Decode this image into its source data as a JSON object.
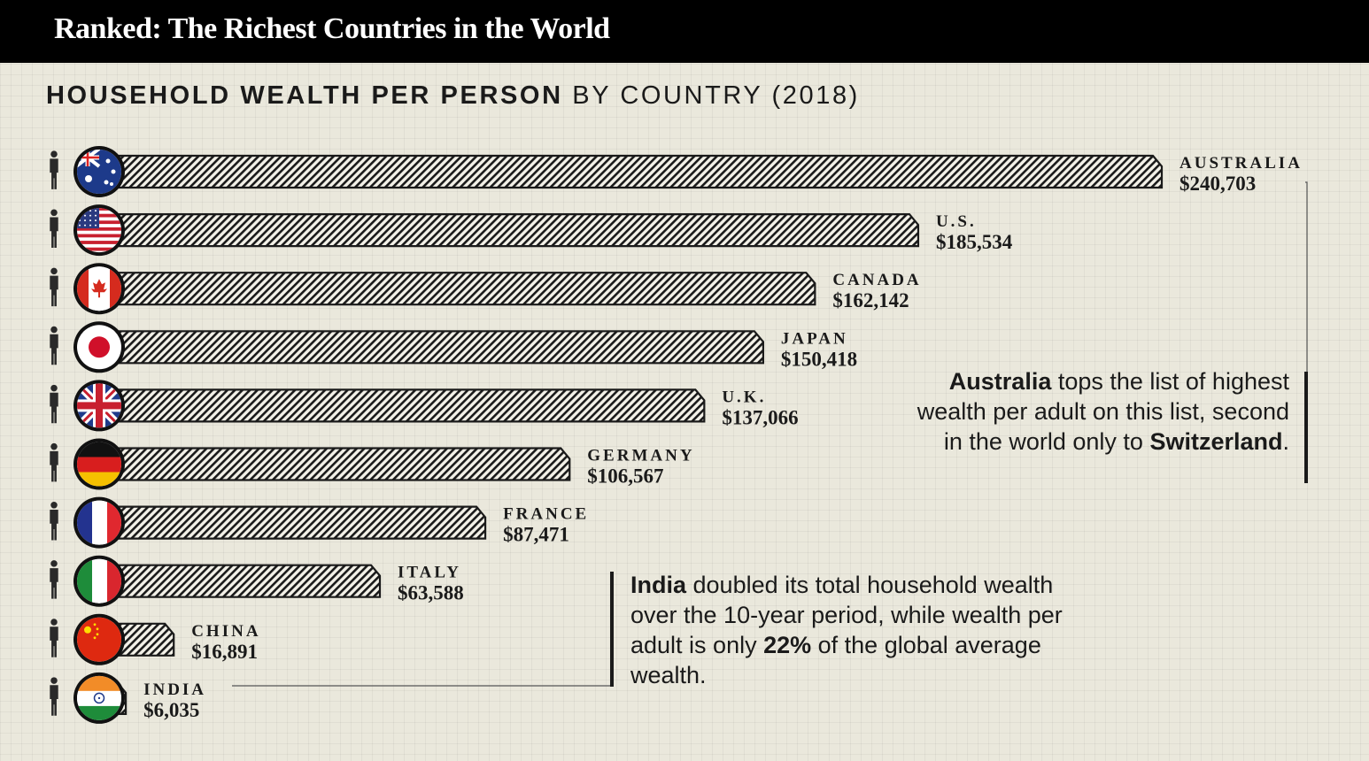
{
  "header": {
    "title": "Ranked: The Richest Countries in the World"
  },
  "chart_data": {
    "type": "bar",
    "orientation": "horizontal",
    "title_bold": "HOUSEHOLD WEALTH PER PERSON",
    "title_rest": " BY COUNTRY (2018)",
    "unit": "USD per adult",
    "categories": [
      "AUSTRALIA",
      "U.S.",
      "CANADA",
      "JAPAN",
      "U.K.",
      "GERMANY",
      "FRANCE",
      "ITALY",
      "CHINA",
      "INDIA"
    ],
    "values": [
      240703,
      185534,
      162142,
      150418,
      137066,
      106567,
      87471,
      63588,
      16891,
      6035
    ],
    "value_labels": [
      "$240,703",
      "$185,534",
      "$162,142",
      "$150,418",
      "$137,066",
      "$106,567",
      "$87,471",
      "$63,588",
      "$16,891",
      "$6,035"
    ],
    "flags": [
      "australia-flag",
      "us-flag",
      "canada-flag",
      "japan-flag",
      "uk-flag",
      "germany-flag",
      "france-flag",
      "italy-flag",
      "china-flag",
      "india-flag"
    ],
    "xlim": [
      0,
      240703
    ]
  },
  "annotations": {
    "australia": {
      "bold": "Australia",
      "text": " tops the list of highest wealth per adult on this list, second in the world only to ",
      "bold2": "Switzerland",
      "end": "."
    },
    "india": {
      "bold": "India",
      "text": " doubled its total household wealth over the 10-year period, while wealth per adult is only ",
      "bold2": "22%",
      "end": " of the global average wealth."
    }
  },
  "colors": {
    "header_bg": "#000000",
    "bar_stroke": "#1a1a1a",
    "background": "#eae8dc"
  }
}
